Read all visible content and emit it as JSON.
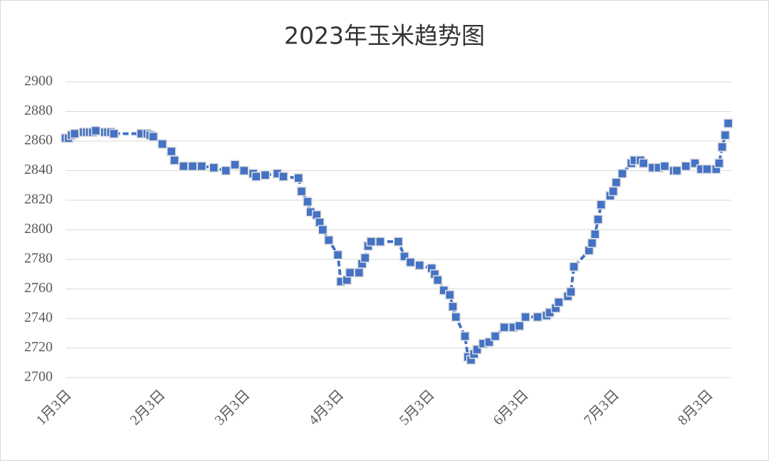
{
  "chart_data": {
    "type": "line",
    "title": "2023年玉米趋势图",
    "x": [
      3,
      4,
      5,
      6,
      9,
      10,
      11,
      12,
      13,
      16,
      17,
      18,
      19,
      28,
      30,
      31,
      32,
      35,
      38,
      39,
      42,
      45,
      48,
      52,
      56,
      59,
      62,
      65,
      66,
      69,
      73,
      75,
      80,
      81,
      83,
      84,
      86,
      87,
      88,
      90,
      93,
      94,
      96,
      97,
      100,
      101,
      102,
      103,
      104,
      107,
      113,
      115,
      117,
      120,
      124,
      125,
      126,
      128,
      130,
      131,
      132,
      135,
      136,
      137,
      138,
      139,
      141,
      143,
      145,
      148,
      151,
      153,
      155,
      159,
      162,
      163,
      165,
      166,
      169,
      170,
      171,
      176,
      177,
      178,
      179,
      180,
      183,
      184,
      185,
      187,
      190,
      191,
      193,
      194,
      197,
      199,
      201,
      204,
      205,
      208,
      211,
      213,
      215,
      218,
      219,
      220,
      221,
      222
    ],
    "values": [
      2862,
      2862,
      2864,
      2865,
      2866,
      2866,
      2866,
      2866,
      2867,
      2866,
      2866,
      2866,
      2865,
      2865,
      2865,
      2864,
      2863,
      2858,
      2853,
      2847,
      2843,
      2843,
      2843,
      2842,
      2840,
      2844,
      2840,
      2838,
      2836,
      2837,
      2838,
      2836,
      2835,
      2826,
      2819,
      2812,
      2810,
      2805,
      2800,
      2793,
      2783,
      2765,
      2766,
      2771,
      2771,
      2777,
      2781,
      2789,
      2792,
      2792,
      2792,
      2782,
      2778,
      2776,
      2774,
      2770,
      2766,
      2759,
      2756,
      2748,
      2741,
      2728,
      2714,
      2712,
      2716,
      2719,
      2723,
      2724,
      2728,
      2734,
      2734,
      2735,
      2741,
      2741,
      2742,
      2744,
      2747,
      2751,
      2755,
      2758,
      2775,
      2786,
      2791,
      2797,
      2807,
      2817,
      2823,
      2826,
      2832,
      2838,
      2845,
      2847,
      2847,
      2845,
      2842,
      2842,
      2843,
      2840,
      2840,
      2843,
      2845,
      2841,
      2841,
      2841,
      2845,
      2856,
      2864,
      2872
    ],
    "color": "#4472c4",
    "xlim": [
      3,
      223
    ],
    "xticks": [
      {
        "value": 3,
        "label": "1月3日"
      },
      {
        "value": 34,
        "label": "2月3日"
      },
      {
        "value": 62,
        "label": "3月3日"
      },
      {
        "value": 93,
        "label": "4月3日"
      },
      {
        "value": 123,
        "label": "5月3日"
      },
      {
        "value": 154,
        "label": "6月3日"
      },
      {
        "value": 184,
        "label": "7月3日"
      },
      {
        "value": 215,
        "label": "8月3日"
      }
    ],
    "ylim": [
      2700,
      2900
    ],
    "yticks": [
      2700,
      2720,
      2740,
      2760,
      2780,
      2800,
      2820,
      2840,
      2860,
      2880,
      2900
    ],
    "grid": true
  }
}
